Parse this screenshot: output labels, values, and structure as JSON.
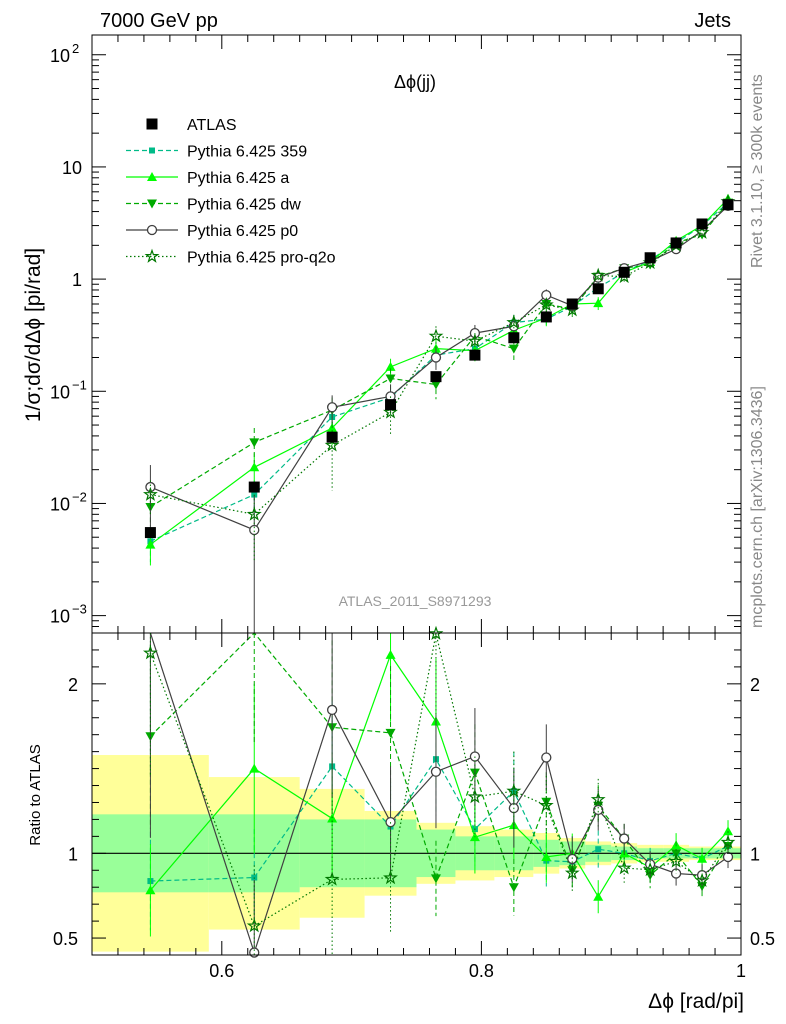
{
  "header": {
    "left": "7000 GeV pp",
    "right": "Jets",
    "plot_label": "Δϕ(jj)",
    "analysis_id": "ATLAS_2011_S8971293",
    "side_right_top": "Rivet 3.1.10, ≥ 300k events",
    "side_right_bottom": "mcplots.cern.ch [arXiv:1306.3436]"
  },
  "axes": {
    "main_ylabel": "1/σ;dσ/dΔϕ [pi/rad]",
    "ratio_ylabel": "Ratio to ATLAS",
    "xlabel": "Δϕ [rad/pi]",
    "xlim": [
      0.5,
      1.0
    ],
    "main_ylim": [
      0.0007,
      150
    ],
    "main_yscale": "log",
    "ratio_ylim": [
      0.4,
      2.3
    ],
    "x_ticks": [
      "0.6",
      "0.8",
      "1"
    ],
    "main_y_ticks": [
      {
        "value": 0.001,
        "base": "10",
        "exp": "−3"
      },
      {
        "value": 0.01,
        "base": "10",
        "exp": "−2"
      },
      {
        "value": 0.1,
        "base": "10",
        "exp": "−1"
      },
      {
        "value": 1,
        "base": "1",
        "exp": ""
      },
      {
        "value": 10,
        "base": "10",
        "exp": ""
      },
      {
        "value": 100,
        "base": "10",
        "exp": "2"
      }
    ],
    "ratio_y_ticks": [
      "0.5",
      "1",
      "2"
    ]
  },
  "chart_data": {
    "type": "line",
    "title": "Δϕ(jj)",
    "xlabel": "Δϕ [rad/pi]",
    "ylabel": "1/σ;dσ/dΔϕ [pi/rad]",
    "xlim": [
      0.5,
      1.0
    ],
    "ylim": [
      0.0007,
      150
    ],
    "yscale": "log",
    "legend_position": "top-left",
    "bin_edges": [
      0.5,
      0.59,
      0.66,
      0.71,
      0.75,
      0.78,
      0.81,
      0.84,
      0.86,
      0.88,
      0.9,
      0.92,
      0.94,
      0.96,
      0.98,
      1.0
    ],
    "x": [
      0.545,
      0.625,
      0.685,
      0.73,
      0.765,
      0.795,
      0.825,
      0.85,
      0.87,
      0.89,
      0.91,
      0.93,
      0.95,
      0.97,
      0.99
    ],
    "series": [
      {
        "name": "ATLAS",
        "style": "data",
        "color": "#000000",
        "values": [
          0.0055,
          0.014,
          0.039,
          0.076,
          0.135,
          0.21,
          0.3,
          0.46,
          0.6,
          0.82,
          1.15,
          1.55,
          2.1,
          3.1,
          4.6
        ],
        "band_inner": [
          0.23,
          0.23,
          0.2,
          0.2,
          0.14,
          0.1,
          0.1,
          0.08,
          0.07,
          0.05,
          0.04,
          0.03,
          0.03,
          0.03,
          0.03
        ],
        "band_outer": [
          0.58,
          0.45,
          0.38,
          0.25,
          0.18,
          0.16,
          0.14,
          0.12,
          0.09,
          0.07,
          0.06,
          0.05,
          0.05,
          0.04,
          0.04
        ]
      },
      {
        "name": "Pythia 6.425 359",
        "style": "dashed",
        "marker": "square",
        "color": "#00bb88",
        "values": [
          0.0046,
          0.012,
          0.059,
          0.088,
          0.21,
          0.24,
          0.41,
          0.44,
          0.57,
          0.84,
          1.15,
          1.48,
          2.1,
          3.0,
          4.8
        ],
        "errors": [
          0.0016,
          0.004,
          0.015,
          0.02,
          0.045,
          0.045,
          0.07,
          0.07,
          0.07,
          0.09,
          0.1,
          0.12,
          0.15,
          0.2,
          0.3
        ]
      },
      {
        "name": "Pythia 6.425 a",
        "style": "solid",
        "marker": "triangle-up",
        "color": "#00ff00",
        "values": [
          0.0043,
          0.021,
          0.047,
          0.165,
          0.24,
          0.23,
          0.35,
          0.45,
          0.6,
          0.61,
          1.15,
          1.42,
          2.2,
          3.0,
          5.2
        ],
        "errors": [
          0.0015,
          0.007,
          0.014,
          0.03,
          0.05,
          0.045,
          0.06,
          0.07,
          0.07,
          0.08,
          0.1,
          0.12,
          0.15,
          0.2,
          0.3
        ]
      },
      {
        "name": "Pythia 6.425 dw",
        "style": "dashed",
        "marker": "triangle-down",
        "color": "#00aa00",
        "values": [
          0.0093,
          0.035,
          0.068,
          0.13,
          0.115,
          0.31,
          0.24,
          0.6,
          0.54,
          1.05,
          1.25,
          1.35,
          2.1,
          2.5,
          4.8
        ],
        "errors": [
          0.003,
          0.012,
          0.02,
          0.03,
          0.03,
          0.06,
          0.05,
          0.08,
          0.07,
          0.1,
          0.1,
          0.12,
          0.15,
          0.2,
          0.3
        ]
      },
      {
        "name": "Pythia 6.425 p0",
        "style": "solid",
        "marker": "circle-open",
        "color": "#404040",
        "values": [
          0.014,
          0.0058,
          0.072,
          0.09,
          0.2,
          0.33,
          0.38,
          0.72,
          0.58,
          1.03,
          1.25,
          1.45,
          1.85,
          2.7,
          4.5
        ],
        "errors": [
          0.008,
          0.006,
          0.02,
          0.025,
          0.045,
          0.06,
          0.07,
          0.09,
          0.08,
          0.1,
          0.1,
          0.12,
          0.15,
          0.2,
          0.3
        ]
      },
      {
        "name": "Pythia 6.425 pro-q2o",
        "style": "dotted",
        "marker": "star",
        "color": "#007700",
        "values": [
          0.012,
          0.008,
          0.033,
          0.065,
          0.31,
          0.28,
          0.41,
          0.59,
          0.53,
          1.08,
          1.05,
          1.4,
          2.0,
          2.6,
          4.9
        ],
        "errors": [
          0.004,
          0.005,
          0.02,
          0.025,
          0.07,
          0.05,
          0.07,
          0.08,
          0.07,
          0.1,
          0.1,
          0.12,
          0.15,
          0.2,
          0.3
        ]
      }
    ]
  }
}
